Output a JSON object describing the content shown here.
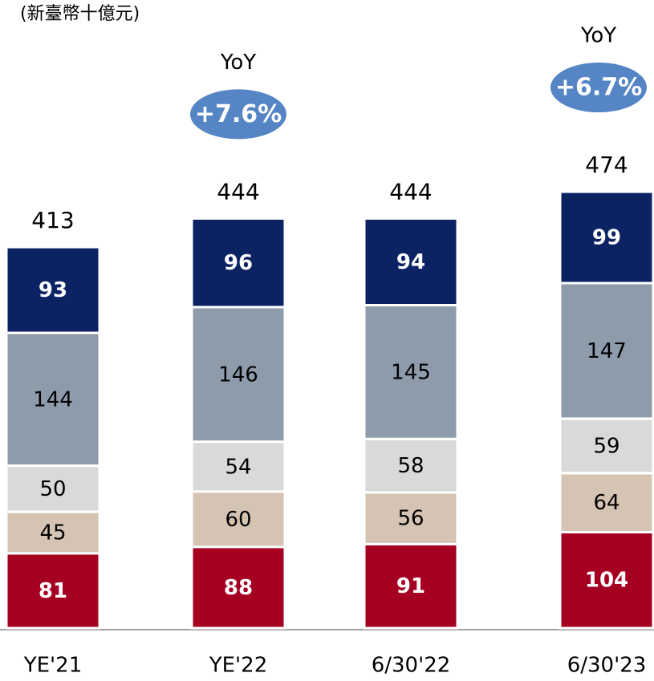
{
  "chart_data": {
    "type": "stacked_bar",
    "subtitle": "(新臺幣十億元)",
    "categories": [
      "YE'21",
      "YE'22",
      "6/30'22",
      "6/30'23"
    ],
    "series": [
      {
        "color": "#a50021",
        "values": [
          81,
          88,
          91,
          104
        ]
      },
      {
        "color": "#d5c3b3",
        "values": [
          45,
          60,
          56,
          64
        ]
      },
      {
        "color": "#d9d9d9",
        "values": [
          50,
          54,
          58,
          59
        ]
      },
      {
        "color": "#8e9bab",
        "values": [
          144,
          146,
          145,
          147
        ]
      },
      {
        "color": "#0b2263",
        "values": [
          93,
          96,
          94,
          99
        ]
      }
    ],
    "totals": [
      413,
      444,
      444,
      474
    ],
    "annotations": [
      {
        "category": "YE'22",
        "title": "YoY",
        "text": "+7.6%",
        "color": "#5585c5"
      },
      {
        "category": "6/30'23",
        "title": "YoY",
        "text": "+6.7%",
        "color": "#5585c5"
      }
    ]
  }
}
